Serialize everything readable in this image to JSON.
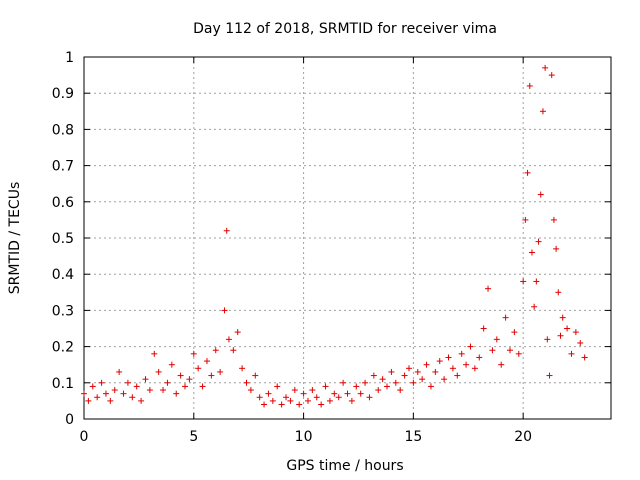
{
  "chart_data": {
    "type": "scatter",
    "title": "Day 112 of 2018, SRMTID for receiver vima",
    "xlabel": "GPS time / hours",
    "ylabel": "SRMTID / TECUs",
    "xlim": [
      0,
      24
    ],
    "ylim": [
      0,
      1
    ],
    "xticks": [
      0,
      5,
      10,
      15,
      20
    ],
    "xtick_labels": [
      "0",
      "5",
      "10",
      "15",
      "20"
    ],
    "yticks": [
      0,
      0.1,
      0.2,
      0.3,
      0.4,
      0.5,
      0.6,
      0.7,
      0.8,
      0.9,
      1
    ],
    "ytick_labels": [
      "0",
      "0.1",
      "0.2",
      "0.3",
      "0.4",
      "0.5",
      "0.6",
      "0.7",
      "0.8",
      "0.9",
      "1"
    ],
    "grid": true,
    "marker": "+",
    "marker_color": "#e00000",
    "series": [
      {
        "name": "SRMTID",
        "x": [
          0.0,
          0.2,
          0.4,
          0.6,
          0.8,
          1.0,
          1.2,
          1.4,
          1.6,
          1.8,
          2.0,
          2.2,
          2.4,
          2.6,
          2.8,
          3.0,
          3.2,
          3.4,
          3.6,
          3.8,
          4.0,
          4.2,
          4.4,
          4.6,
          4.8,
          5.0,
          5.2,
          5.4,
          5.6,
          5.8,
          6.0,
          6.2,
          6.4,
          6.5,
          6.6,
          6.8,
          7.0,
          7.2,
          7.4,
          7.6,
          7.8,
          8.0,
          8.2,
          8.4,
          8.6,
          8.8,
          9.0,
          9.2,
          9.4,
          9.6,
          9.8,
          10.0,
          10.2,
          10.4,
          10.6,
          10.8,
          11.0,
          11.2,
          11.4,
          11.6,
          11.8,
          12.0,
          12.2,
          12.4,
          12.6,
          12.8,
          13.0,
          13.2,
          13.4,
          13.6,
          13.8,
          14.0,
          14.2,
          14.4,
          14.6,
          14.8,
          15.0,
          15.2,
          15.4,
          15.6,
          15.8,
          16.0,
          16.2,
          16.4,
          16.6,
          16.8,
          17.0,
          17.2,
          17.4,
          17.6,
          17.8,
          18.0,
          18.2,
          18.4,
          18.6,
          18.8,
          19.0,
          19.2,
          19.4,
          19.6,
          19.8,
          20.0,
          20.1,
          20.2,
          20.3,
          20.4,
          20.5,
          20.6,
          20.7,
          20.8,
          20.9,
          21.0,
          21.1,
          21.2,
          21.3,
          21.4,
          21.5,
          21.6,
          21.7,
          21.8,
          22.0,
          22.2,
          22.4,
          22.6,
          22.8
        ],
        "y": [
          0.07,
          0.05,
          0.09,
          0.06,
          0.1,
          0.07,
          0.05,
          0.08,
          0.13,
          0.07,
          0.1,
          0.06,
          0.09,
          0.05,
          0.11,
          0.08,
          0.18,
          0.13,
          0.08,
          0.1,
          0.15,
          0.07,
          0.12,
          0.09,
          0.11,
          0.18,
          0.14,
          0.09,
          0.16,
          0.12,
          0.19,
          0.13,
          0.3,
          0.52,
          0.22,
          0.19,
          0.24,
          0.14,
          0.1,
          0.08,
          0.12,
          0.06,
          0.04,
          0.07,
          0.05,
          0.09,
          0.04,
          0.06,
          0.05,
          0.08,
          0.04,
          0.07,
          0.05,
          0.08,
          0.06,
          0.04,
          0.09,
          0.05,
          0.07,
          0.06,
          0.1,
          0.07,
          0.05,
          0.09,
          0.07,
          0.1,
          0.06,
          0.12,
          0.08,
          0.11,
          0.09,
          0.13,
          0.1,
          0.08,
          0.12,
          0.14,
          0.1,
          0.13,
          0.11,
          0.15,
          0.09,
          0.13,
          0.16,
          0.11,
          0.17,
          0.14,
          0.12,
          0.18,
          0.15,
          0.2,
          0.14,
          0.17,
          0.25,
          0.36,
          0.19,
          0.22,
          0.15,
          0.28,
          0.19,
          0.24,
          0.18,
          0.38,
          0.55,
          0.68,
          0.92,
          0.46,
          0.31,
          0.38,
          0.49,
          0.62,
          0.85,
          0.97,
          0.22,
          0.12,
          0.95,
          0.55,
          0.47,
          0.35,
          0.23,
          0.28,
          0.25,
          0.18,
          0.24,
          0.21,
          0.17
        ]
      }
    ]
  }
}
